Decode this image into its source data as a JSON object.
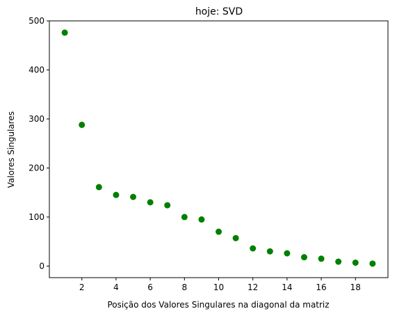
{
  "chart_data": {
    "type": "scatter",
    "title": "hoje: SVD",
    "xlabel": "Posição dos Valores Singulares na diagonal da matriz",
    "ylabel": "Valores Singulares",
    "xlim": [
      0.1,
      19.9
    ],
    "ylim": [
      -23.6,
      500
    ],
    "xticks": [
      2,
      4,
      6,
      8,
      10,
      12,
      14,
      16,
      18
    ],
    "yticks": [
      0,
      100,
      200,
      300,
      400,
      500
    ],
    "grid": false,
    "legend": "none",
    "marker_color": "#008000",
    "series": [
      {
        "x": [
          1,
          2,
          3,
          4,
          5,
          6,
          7,
          8,
          9,
          10,
          11,
          12,
          13,
          14,
          15,
          16,
          17,
          18,
          19
        ],
        "y": [
          476,
          288,
          161,
          145,
          141,
          130,
          124,
          100,
          95,
          70,
          57,
          36,
          30,
          26,
          18,
          15,
          9,
          7,
          5
        ]
      }
    ]
  }
}
